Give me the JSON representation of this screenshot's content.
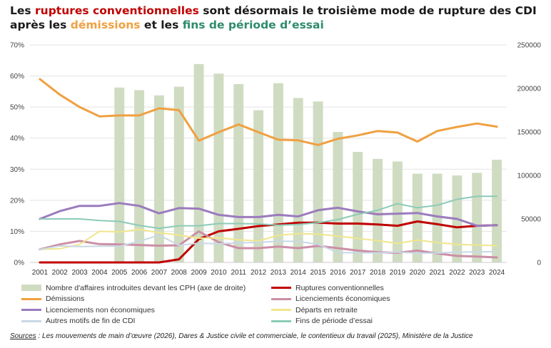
{
  "title": {
    "p1": "Les ",
    "h1": "ruptures conventionnelles",
    "p2": " sont désormais le troisième mode de rupture des CDI après les ",
    "h2": "démissions",
    "p3": " et les ",
    "h3": "fins de période d’essai"
  },
  "source": {
    "label": "Sources",
    "text": " : Les mouvements de main d’œuvre (2026), Dares & Justice civile et commerciale, le contentieux du travail (2025), Ministère de la Justice"
  },
  "chart_data": {
    "type": "bar+line",
    "categories": [
      "2001",
      "2002",
      "2003",
      "2004",
      "2005",
      "2006",
      "2007",
      "2008",
      "2009",
      "2010",
      "2011",
      "2012",
      "2013",
      "2014",
      "2015",
      "2016",
      "2017",
      "2018",
      "2019",
      "2020",
      "2021",
      "2022",
      "2023",
      "2024"
    ],
    "left_axis": {
      "min": 0,
      "max": 70,
      "step": 10,
      "unit": "%",
      "ticks": [
        "0%",
        "10%",
        "20%",
        "30%",
        "40%",
        "50%",
        "60%",
        "70%"
      ]
    },
    "right_axis": {
      "min": 0,
      "max": 250000,
      "step": 50000,
      "ticks": [
        "0",
        "50000",
        "100000",
        "150000",
        "200000",
        "250000"
      ]
    },
    "bars": {
      "name": "Nombre d'affaires introduites devant les CPH (axe de droite)",
      "color": "#cfdcc2",
      "values": [
        null,
        null,
        null,
        null,
        201000,
        198000,
        192000,
        202000,
        228000,
        217000,
        205000,
        175000,
        206000,
        189000,
        185000,
        150000,
        127000,
        119000,
        116000,
        102000,
        102000,
        100000,
        103000,
        118000
      ]
    },
    "series": [
      {
        "name": "Ruptures conventionnelles",
        "color": "#c00000",
        "width": 3,
        "values": [
          0,
          0,
          0,
          0,
          0,
          0,
          0,
          1,
          7.5,
          10,
          10.8,
          11.7,
          12.2,
          12.8,
          12.8,
          12.5,
          12.5,
          12.2,
          11.8,
          13.2,
          12.3,
          11.3,
          11.8,
          12
        ]
      },
      {
        "name": "Licenciements économiques",
        "color": "#cc8ea6",
        "width": 3,
        "values": [
          4.2,
          5.8,
          6.9,
          5.9,
          5.8,
          5.6,
          5.4,
          5.5,
          10,
          6.5,
          4.6,
          4.6,
          5.1,
          4.6,
          5.3,
          4.6,
          3.8,
          3.3,
          3.1,
          3.8,
          2.9,
          2.1,
          1.9,
          1.6
        ]
      },
      {
        "name": "Démissions",
        "color": "#f0a040",
        "width": 3,
        "values": [
          59,
          54,
          50,
          47,
          47.3,
          47.3,
          49.6,
          49,
          39.2,
          41.9,
          44.4,
          41.9,
          39.5,
          39.3,
          37.8,
          39.8,
          40.9,
          42.3,
          41.8,
          38.9,
          42.3,
          43.6,
          44.7,
          43.7
        ]
      },
      {
        "name": "Licenciements non économiques",
        "color": "#9b7bbd",
        "width": 3,
        "values": [
          14,
          16.5,
          18.2,
          18.2,
          19.1,
          18.2,
          15.8,
          17.5,
          17.3,
          15.3,
          14.6,
          14.6,
          15.3,
          14.8,
          16.8,
          17.6,
          16.4,
          15.5,
          15.7,
          15.9,
          14.8,
          14,
          11.8,
          12
        ]
      },
      {
        "name": "Départs en retraite",
        "color": "#f0e68c",
        "width": 2,
        "values": [
          4.2,
          4.4,
          5.8,
          10,
          9.8,
          10.6,
          9.6,
          8.8,
          7.8,
          7.9,
          7.3,
          6.9,
          8.7,
          9.3,
          9.1,
          8.5,
          7.7,
          7,
          6.1,
          7.2,
          6.4,
          5.8,
          5.6,
          5.4
        ]
      },
      {
        "name": "Fins de période d’essai",
        "color": "#8ccbb8",
        "width": 2,
        "values": [
          14,
          14,
          14,
          13.5,
          13.2,
          11.9,
          11,
          11.8,
          11.8,
          12.5,
          12.5,
          12.4,
          12,
          12.2,
          12.8,
          13.8,
          15.5,
          16.8,
          18.9,
          17.6,
          18.4,
          20.3,
          21.3,
          21.3
        ]
      },
      {
        "name": "Autres motifs de fin de CDI",
        "color": "#c8d8e6",
        "width": 2,
        "values": [
          4.2,
          5.3,
          5.1,
          5.2,
          5.2,
          6.8,
          8.8,
          5.5,
          6.2,
          6,
          6.3,
          6.5,
          6.8,
          6.8,
          5.8,
          3.2,
          3.1,
          3.1,
          3.3,
          3,
          3,
          3.3,
          3.4,
          3.5
        ]
      }
    ],
    "legend": [
      {
        "name": "Nombre d'affaires introduites devant les CPH (axe de droite)",
        "kind": "bar",
        "color": "#cfdcc2"
      },
      {
        "name": "Ruptures conventionnelles",
        "kind": "line",
        "color": "#c00000"
      },
      {
        "name": "Démissions",
        "kind": "line",
        "color": "#f0a040"
      },
      {
        "name": "Licenciements économiques",
        "kind": "line",
        "color": "#cc8ea6"
      },
      {
        "name": "Licenciements non économiques",
        "kind": "line",
        "color": "#9b7bbd"
      },
      {
        "name": "Départs en retraite",
        "kind": "line",
        "color": "#f0e68c"
      },
      {
        "name": "Autres motifs de fin de CDI",
        "kind": "line",
        "color": "#c8d8e6"
      },
      {
        "name": "Fins de période d’essai",
        "kind": "line",
        "color": "#8ccbb8"
      }
    ]
  }
}
